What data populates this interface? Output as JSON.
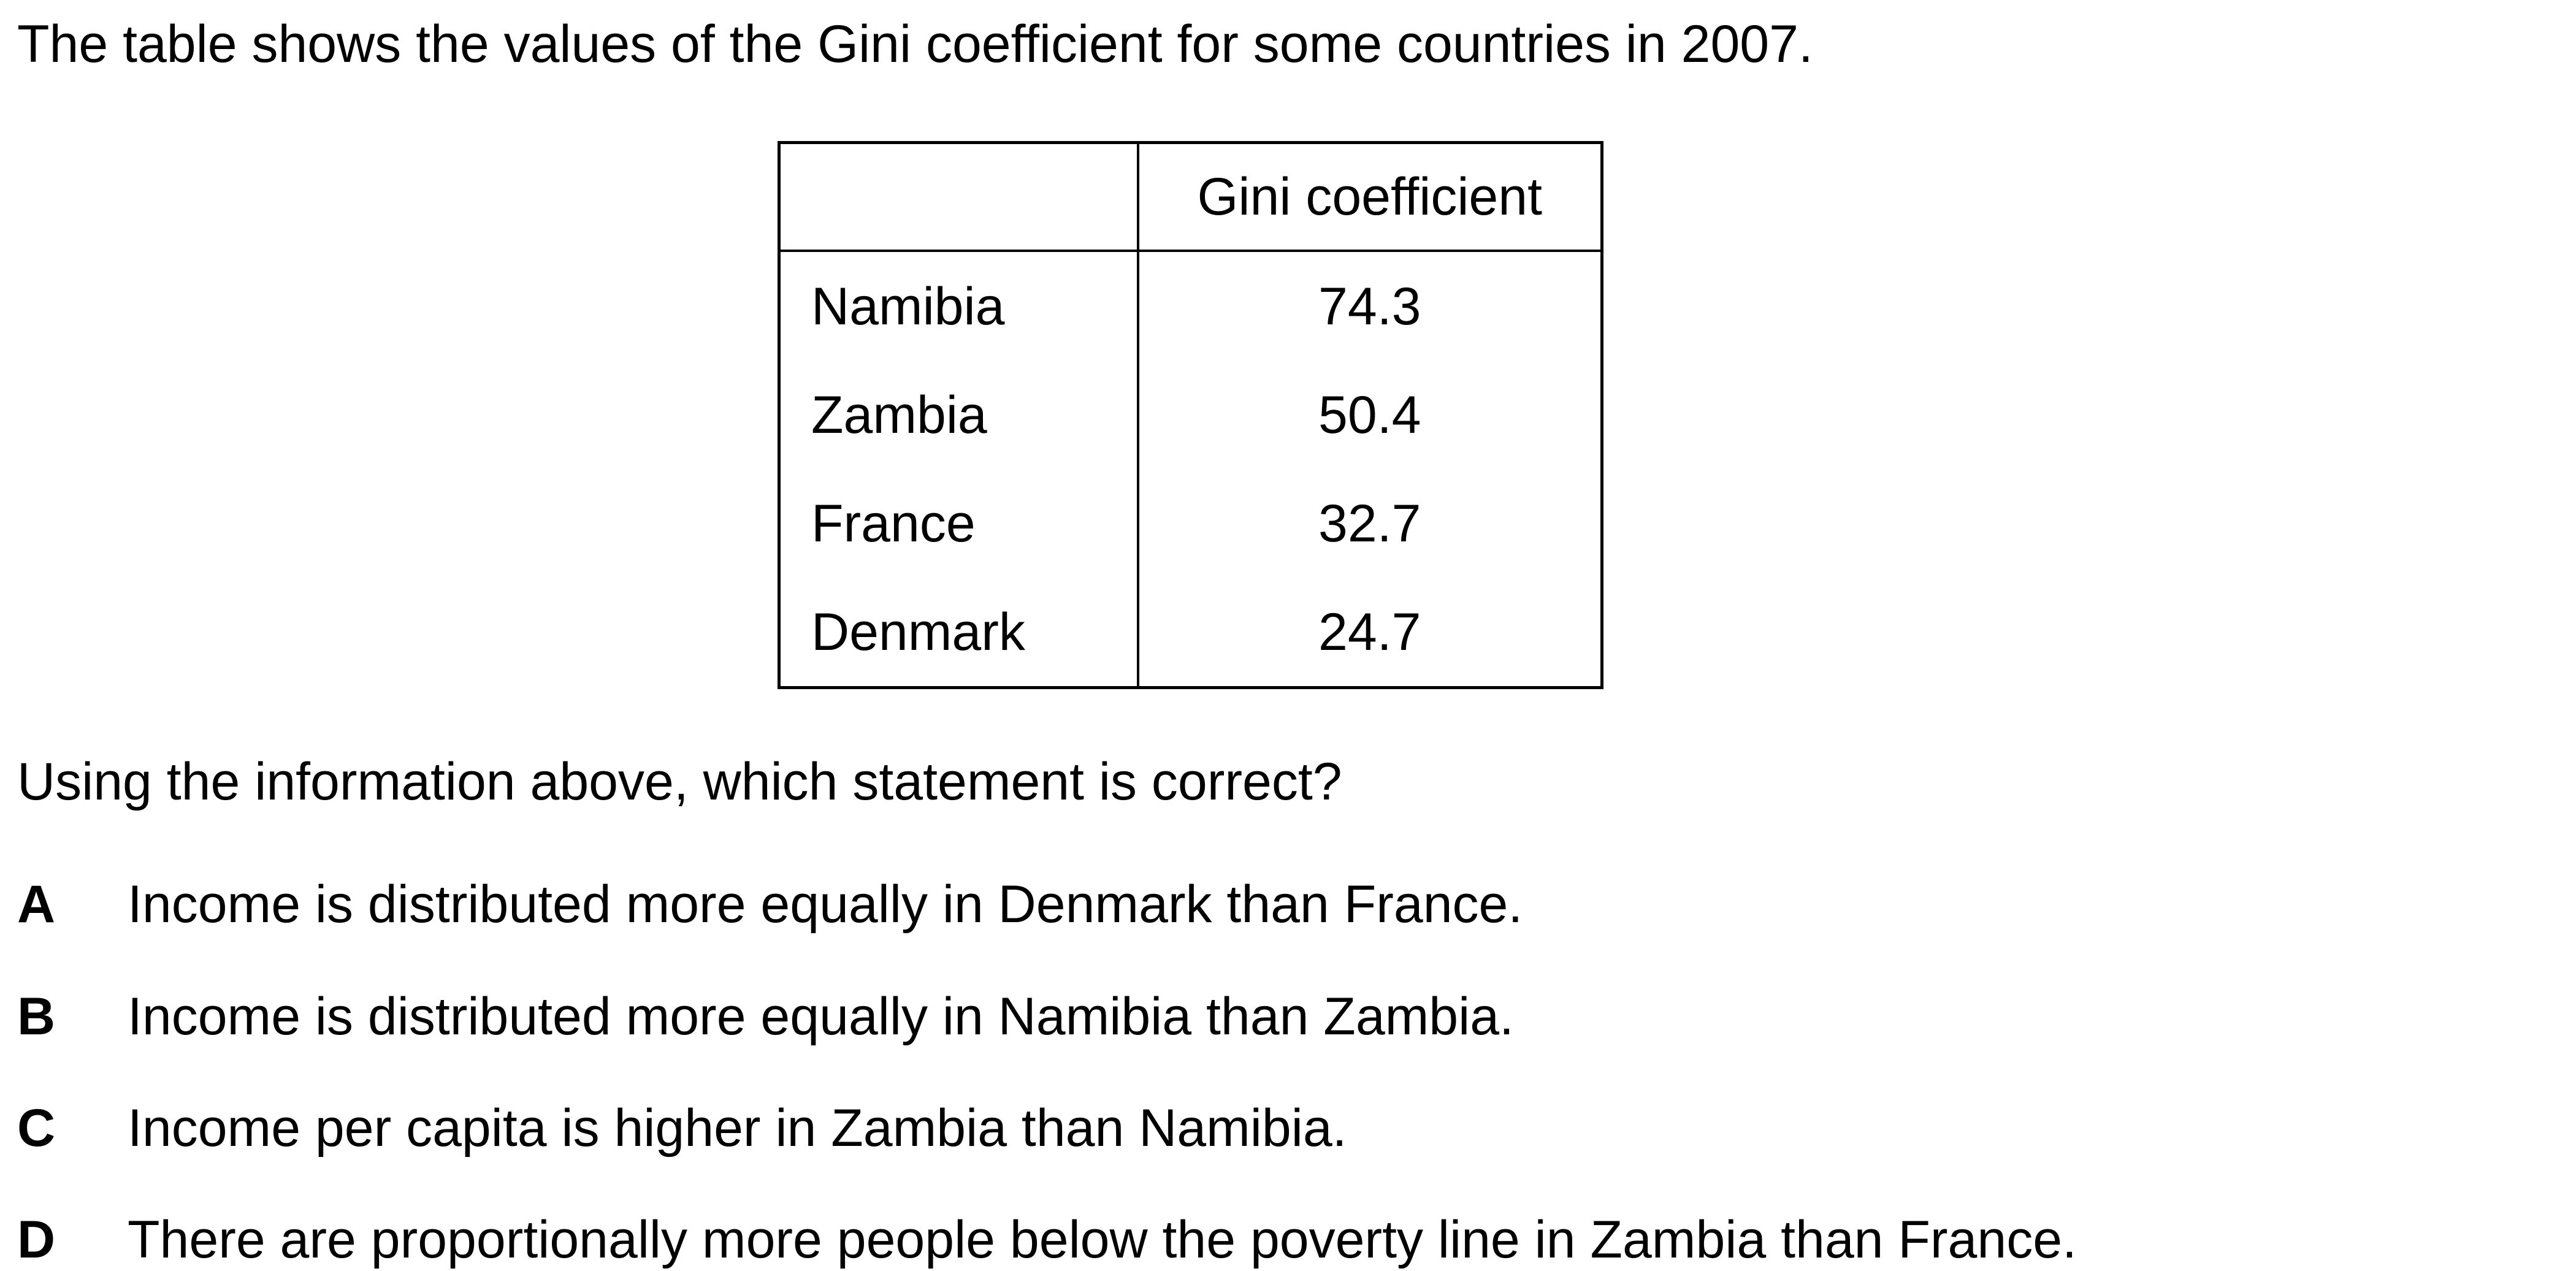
{
  "intro": "The table shows the values of the Gini coefficient for some countries in 2007.",
  "table": {
    "header_country": "",
    "header_value": "Gini coefficient",
    "rows": [
      {
        "country": "Namibia",
        "value": "74.3"
      },
      {
        "country": "Zambia",
        "value": "50.4"
      },
      {
        "country": "France",
        "value": "32.7"
      },
      {
        "country": "Denmark",
        "value": "24.7"
      }
    ]
  },
  "question": "Using the information above, which statement is correct?",
  "options": [
    {
      "letter": "A",
      "text": "Income is distributed more equally in Denmark than France."
    },
    {
      "letter": "B",
      "text": "Income is distributed more equally in Namibia than Zambia."
    },
    {
      "letter": "C",
      "text": "Income per capita is higher in Zambia than Namibia."
    },
    {
      "letter": "D",
      "text": "There are proportionally more people below the poverty line in Zambia than France."
    }
  ]
}
